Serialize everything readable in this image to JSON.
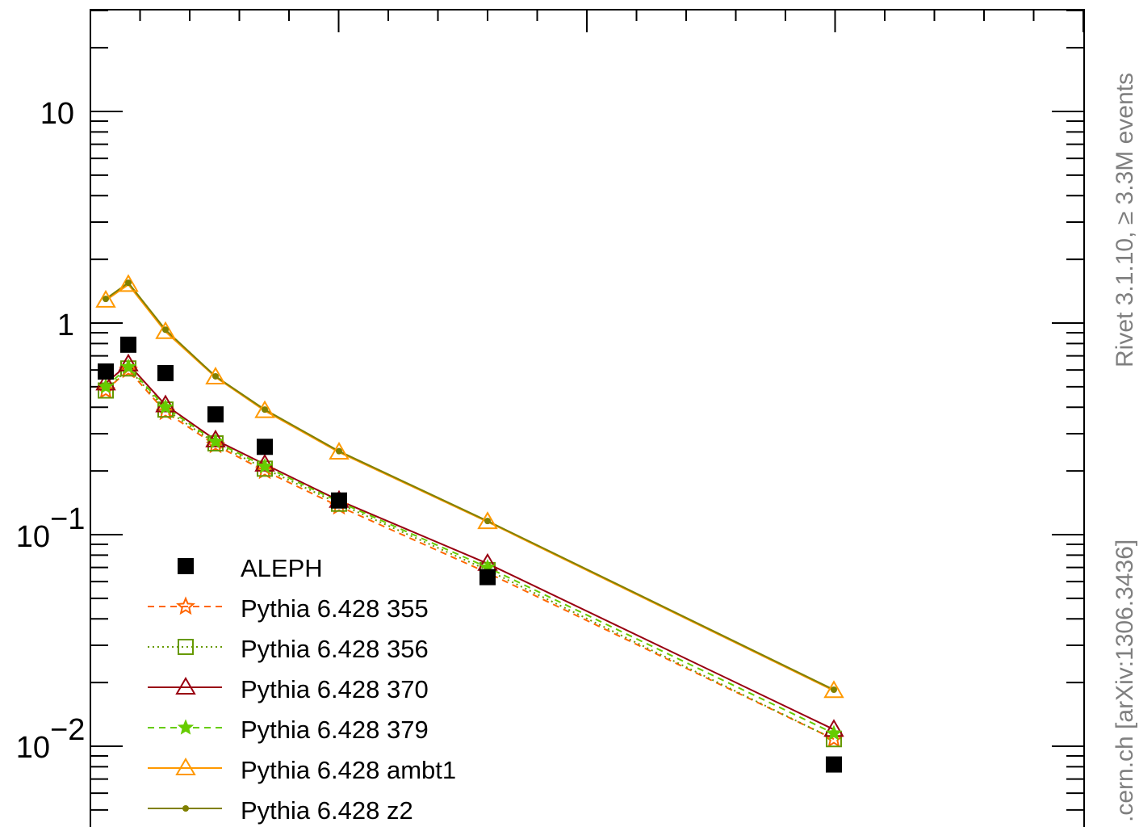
{
  "chart_data": {
    "type": "line",
    "y_scale": "log",
    "ylim": [
      0.005,
      30
    ],
    "grid": false,
    "legend_placement": "bottom-left",
    "ytick_labels": {
      "ten": "10",
      "one": "1",
      "tenth_base": "10",
      "tenth_exp": "−1",
      "hundredth_base": "10",
      "hundredth_exp": "−2"
    },
    "x": [
      1,
      2,
      3,
      4,
      5,
      6,
      7,
      8
    ],
    "data": {
      "name": "ALEPH",
      "color": "#000000",
      "y": [
        0.59,
        0.79,
        0.58,
        0.37,
        0.26,
        0.145,
        0.063,
        0.0082
      ]
    },
    "series": [
      {
        "name": "Pythia 6.428 355",
        "color": "#ff6600",
        "dash": "8,6",
        "marker": "star-open",
        "y": [
          0.48,
          0.6,
          0.38,
          0.265,
          0.2,
          0.136,
          0.066,
          0.0108
        ]
      },
      {
        "name": "Pythia 6.428 356",
        "color": "#669900",
        "dash": "2,4",
        "marker": "square-open",
        "y": [
          0.48,
          0.61,
          0.39,
          0.27,
          0.205,
          0.14,
          0.068,
          0.0108
        ]
      },
      {
        "name": "Pythia 6.428 370",
        "color": "#990011",
        "dash": "",
        "marker": "triangle-open",
        "y": [
          0.52,
          0.64,
          0.41,
          0.28,
          0.215,
          0.145,
          0.073,
          0.012
        ]
      },
      {
        "name": "Pythia 6.428 379",
        "color": "#66cc00",
        "dash": "8,6",
        "marker": "star-filled",
        "y": [
          0.5,
          0.62,
          0.4,
          0.275,
          0.21,
          0.143,
          0.07,
          0.0115
        ]
      },
      {
        "name": "Pythia 6.428 ambt1",
        "color": "#ff9900",
        "dash": "",
        "marker": "triangle-open",
        "y": [
          1.28,
          1.52,
          0.91,
          0.555,
          0.385,
          0.245,
          0.115,
          0.0183
        ]
      },
      {
        "name": "Pythia 6.428 z2",
        "color": "#808000",
        "dash": "",
        "marker": "dot",
        "y": [
          1.3,
          1.55,
          0.93,
          0.56,
          0.39,
          0.248,
          0.116,
          0.0185
        ]
      }
    ]
  },
  "side": {
    "top_text": "Rivet 3.1.10, ≥ 3.3M events",
    "bottom_text": ".cern.ch [arXiv:1306.3436]"
  }
}
